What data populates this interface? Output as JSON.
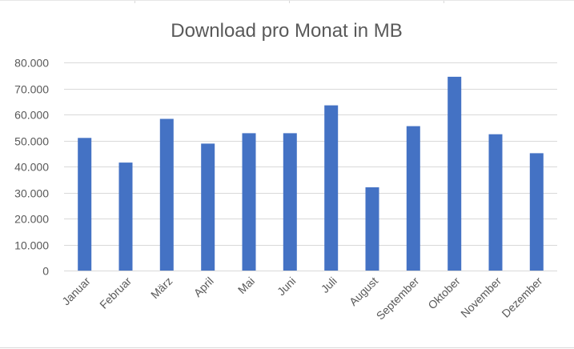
{
  "chart_data": {
    "type": "bar",
    "title": "Download pro Monat in MB",
    "xlabel": "",
    "ylabel": "",
    "categories": [
      "Januar",
      "Februar",
      "März",
      "April",
      "Mai",
      "Juni",
      "Juli",
      "August",
      "September",
      "Oktober",
      "November",
      "Dezember"
    ],
    "values": [
      51000,
      41500,
      58300,
      48800,
      52800,
      52800,
      63500,
      32000,
      55500,
      74500,
      52400,
      45100
    ],
    "ylim": [
      0,
      80000
    ],
    "ytick_labels": [
      "0",
      "10.000",
      "20.000",
      "30.000",
      "40.000",
      "50.000",
      "60.000",
      "70.000",
      "80.000"
    ],
    "grid": true,
    "legend": "none",
    "bar_color": "#4472C4"
  }
}
